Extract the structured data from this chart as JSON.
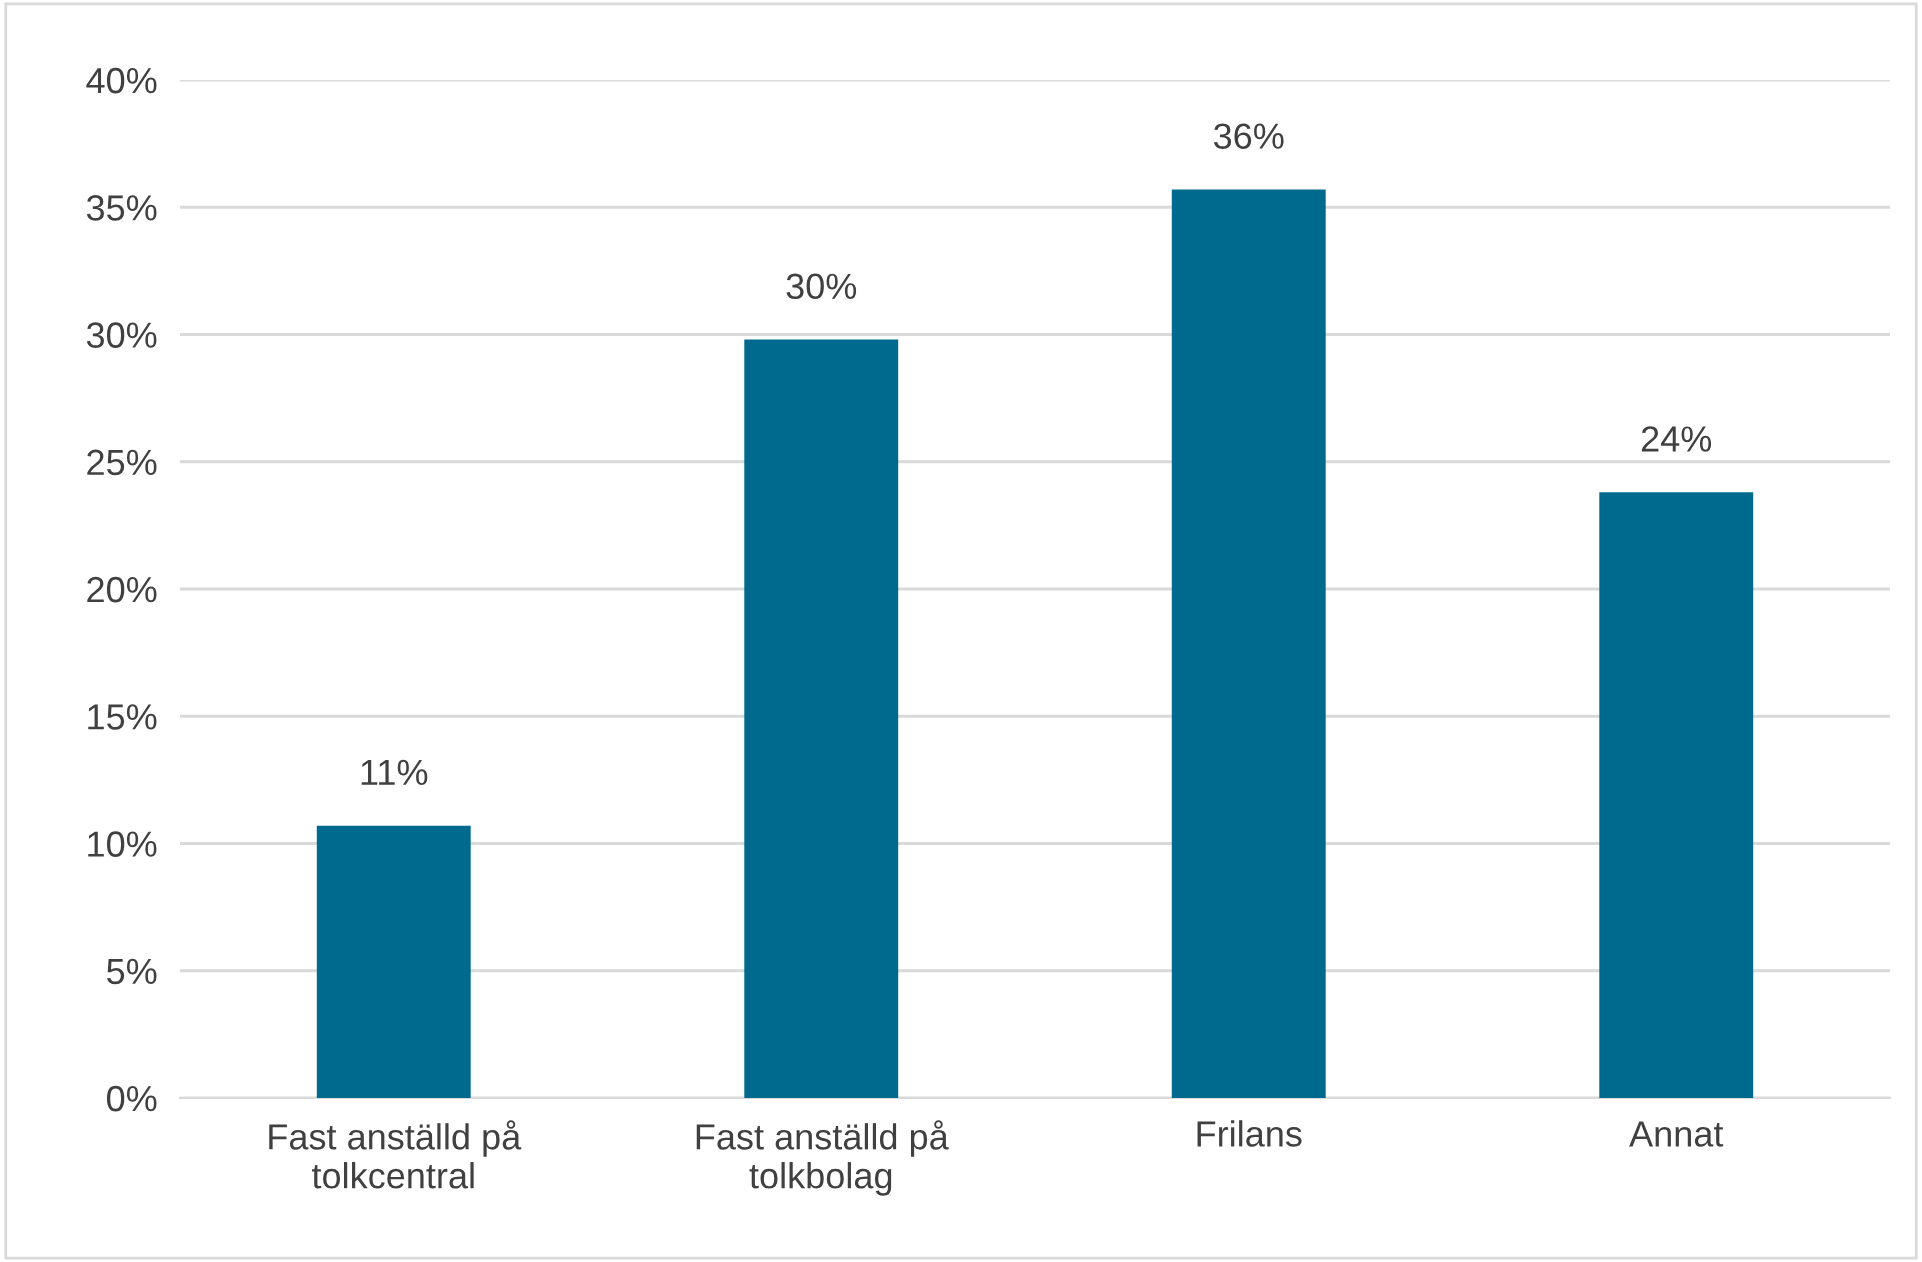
{
  "chart_data": {
    "type": "bar",
    "categories": [
      "Fast anställd på\ntolkcentral",
      "Fast anställd på\ntolkbolag",
      "Frilans",
      "Annat"
    ],
    "values": [
      10.7,
      29.8,
      35.7,
      23.8
    ],
    "value_labels": [
      "11%",
      "30%",
      "36%",
      "24%"
    ],
    "color": "#006a8e",
    "ylim": [
      0,
      40
    ],
    "yticks": [
      {
        "value": 0,
        "label": "0%"
      },
      {
        "value": 5,
        "label": "5%"
      },
      {
        "value": 10,
        "label": "10%"
      },
      {
        "value": 15,
        "label": "15%"
      },
      {
        "value": 20,
        "label": "20%"
      },
      {
        "value": 25,
        "label": "25%"
      },
      {
        "value": 30,
        "label": "30%"
      },
      {
        "value": 35,
        "label": "35%"
      },
      {
        "value": 40,
        "label": "40%"
      }
    ],
    "grid": "y"
  }
}
